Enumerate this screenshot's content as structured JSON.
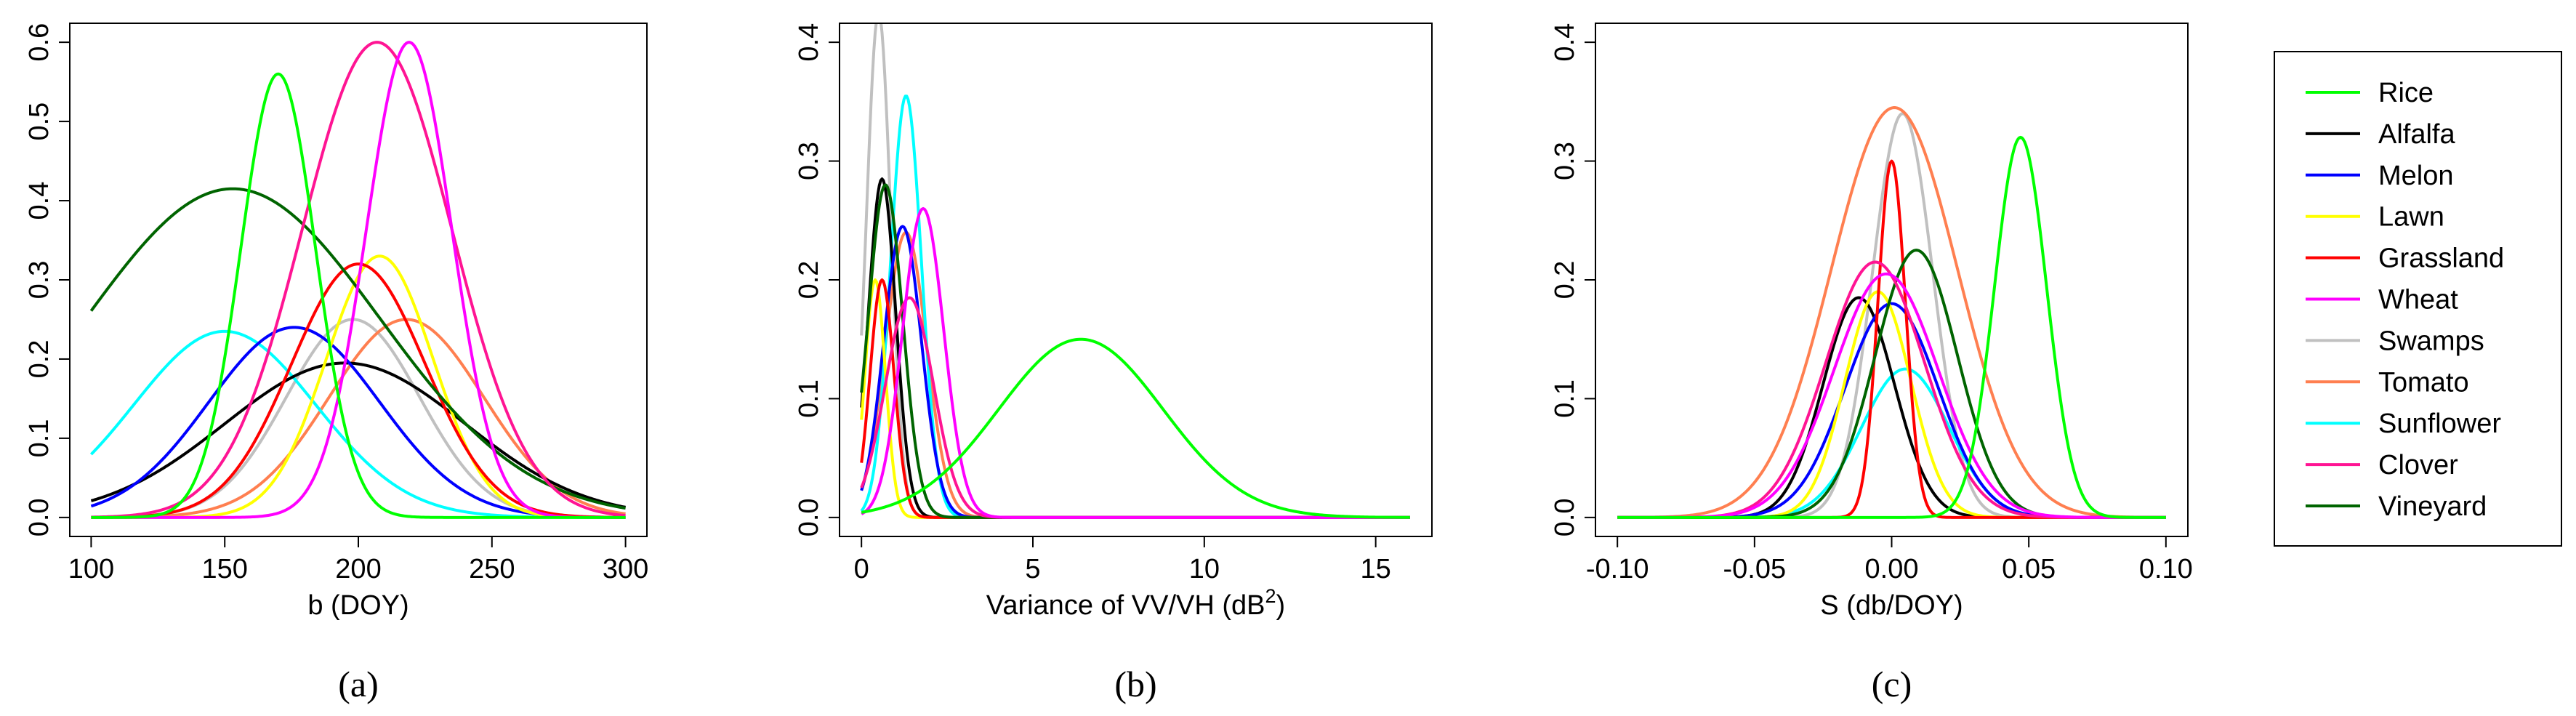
{
  "chart_data": [
    {
      "type": "line",
      "panel_label": "(a)",
      "title": "",
      "xlabel": "b (DOY)",
      "ylabel": "",
      "xlim": [
        100,
        300
      ],
      "ylim": [
        0,
        0.6
      ],
      "xticks": [
        "100",
        "150",
        "200",
        "250",
        "300"
      ],
      "yticks": [
        "0.0",
        "0.1",
        "0.2",
        "0.3",
        "0.4",
        "0.5",
        "0.6"
      ],
      "series": [
        {
          "name": "Rice",
          "color": "#00ff00",
          "shape": "gaussian",
          "mean": 170,
          "sd": 14,
          "peak": 0.56
        },
        {
          "name": "Alfalfa",
          "color": "#000000",
          "shape": "gaussian",
          "mean": 195,
          "sd": 45,
          "peak": 0.195
        },
        {
          "name": "Melon",
          "color": "#0000ff",
          "shape": "gaussian",
          "mean": 176,
          "sd": 32,
          "peak": 0.24
        },
        {
          "name": "Lawn",
          "color": "#ffff00",
          "shape": "gaussian",
          "mean": 208,
          "sd": 20,
          "peak": 0.33
        },
        {
          "name": "Grassland",
          "color": "#ff0000",
          "shape": "gaussian",
          "mean": 200,
          "sd": 25,
          "peak": 0.32
        },
        {
          "name": "Wheat",
          "color": "#ff00ff",
          "shape": "gaussian",
          "mean": 219,
          "sd": 16,
          "peak": 0.6
        },
        {
          "name": "Swamps",
          "color": "#c0c0c0",
          "shape": "gaussian",
          "mean": 198,
          "sd": 25,
          "peak": 0.25
        },
        {
          "name": "Tomato",
          "color": "#ff7f50",
          "shape": "gaussian",
          "mean": 218,
          "sd": 29,
          "peak": 0.25
        },
        {
          "name": "Sunflower",
          "color": "#00ffff",
          "shape": "gaussian",
          "mean": 150,
          "sd": 34,
          "peak": 0.235
        },
        {
          "name": "Clover",
          "color": "#ff1493",
          "shape": "gaussian",
          "mean": 207,
          "sd": 28,
          "peak": 0.6
        },
        {
          "name": "Vineyard",
          "color": "#006400",
          "shape": "gaussian",
          "mean": 153,
          "sd": 55,
          "peak": 0.415
        }
      ]
    },
    {
      "type": "line",
      "panel_label": "(b)",
      "title": "",
      "xlabel": "Variance of VV/VH (dB",
      "xlabel_sup": "2",
      "xlabel_end": ")",
      "ylabel": "",
      "xlim": [
        0,
        16
      ],
      "ylim": [
        0,
        0.4
      ],
      "xticks": [
        "0",
        "5",
        "10",
        "15"
      ],
      "yticks": [
        "0.0",
        "0.1",
        "0.2",
        "0.3",
        "0.4"
      ],
      "series": [
        {
          "name": "Rice",
          "color": "#00ff00",
          "shape": "gaussian",
          "mean": 6.4,
          "sd": 2.4,
          "peak": 0.15
        },
        {
          "name": "Alfalfa",
          "color": "#000000",
          "shape": "gaussian",
          "mean": 0.6,
          "sd": 0.4,
          "peak": 0.285
        },
        {
          "name": "Melon",
          "color": "#0000ff",
          "shape": "gaussian",
          "mean": 1.2,
          "sd": 0.55,
          "peak": 0.245
        },
        {
          "name": "Lawn",
          "color": "#ffff00",
          "shape": "gaussian",
          "mean": 0.4,
          "sd": 0.3,
          "peak": 0.2
        },
        {
          "name": "Grassland",
          "color": "#ff0000",
          "shape": "gaussian",
          "mean": 0.6,
          "sd": 0.35,
          "peak": 0.2
        },
        {
          "name": "Wheat",
          "color": "#ff00ff",
          "shape": "gaussian",
          "mean": 1.8,
          "sd": 0.6,
          "peak": 0.26
        },
        {
          "name": "Swamps",
          "color": "#c0c0c0",
          "shape": "gaussian",
          "mean": 0.5,
          "sd": 0.35,
          "peak": 0.425
        },
        {
          "name": "Tomato",
          "color": "#ff7f50",
          "shape": "gaussian",
          "mean": 1.3,
          "sd": 0.6,
          "peak": 0.24
        },
        {
          "name": "Sunflower",
          "color": "#00ffff",
          "shape": "gaussian",
          "mean": 1.3,
          "sd": 0.45,
          "peak": 0.355
        },
        {
          "name": "Clover",
          "color": "#ff1493",
          "shape": "gaussian",
          "mean": 1.4,
          "sd": 0.7,
          "peak": 0.185
        },
        {
          "name": "Vineyard",
          "color": "#006400",
          "shape": "gaussian",
          "mean": 0.7,
          "sd": 0.5,
          "peak": 0.28
        }
      ]
    },
    {
      "type": "line",
      "panel_label": "(c)",
      "title": "",
      "xlabel": "S (db/DOY)",
      "ylabel": "",
      "xlim": [
        -0.1,
        0.1
      ],
      "ylim": [
        0,
        0.4
      ],
      "xticks": [
        "-0.10",
        "-0.05",
        "0.00",
        "0.05",
        "0.10"
      ],
      "yticks": [
        "0.0",
        "0.1",
        "0.2",
        "0.3",
        "0.4"
      ],
      "series": [
        {
          "name": "Rice",
          "color": "#00ff00",
          "shape": "gaussian",
          "mean": 0.047,
          "sd": 0.0095,
          "peak": 0.32
        },
        {
          "name": "Alfalfa",
          "color": "#000000",
          "shape": "gaussian",
          "mean": -0.012,
          "sd": 0.013,
          "peak": 0.185
        },
        {
          "name": "Melon",
          "color": "#0000ff",
          "shape": "gaussian",
          "mean": 0.0,
          "sd": 0.017,
          "peak": 0.18
        },
        {
          "name": "Lawn",
          "color": "#ffff00",
          "shape": "gaussian",
          "mean": -0.005,
          "sd": 0.012,
          "peak": 0.19
        },
        {
          "name": "Grassland",
          "color": "#ff0000",
          "shape": "gaussian",
          "mean": 0.0,
          "sd": 0.005,
          "peak": 0.3
        },
        {
          "name": "Wheat",
          "color": "#ff00ff",
          "shape": "gaussian",
          "mean": -0.002,
          "sd": 0.019,
          "peak": 0.205
        },
        {
          "name": "Swamps",
          "color": "#c0c0c0",
          "shape": "gaussian",
          "mean": 0.004,
          "sd": 0.011,
          "peak": 0.34
        },
        {
          "name": "Tomato",
          "color": "#ff7f50",
          "shape": "gaussian",
          "mean": 0.001,
          "sd": 0.023,
          "peak": 0.345
        },
        {
          "name": "Sunflower",
          "color": "#00ffff",
          "shape": "gaussian",
          "mean": 0.005,
          "sd": 0.016,
          "peak": 0.125
        },
        {
          "name": "Clover",
          "color": "#ff1493",
          "shape": "gaussian",
          "mean": -0.006,
          "sd": 0.018,
          "peak": 0.215
        },
        {
          "name": "Vineyard",
          "color": "#006400",
          "shape": "gaussian",
          "mean": 0.009,
          "sd": 0.015,
          "peak": 0.225
        }
      ]
    }
  ],
  "legend": {
    "position": "right",
    "entries": [
      {
        "label": "Rice",
        "color": "#00ff00"
      },
      {
        "label": "Alfalfa",
        "color": "#000000"
      },
      {
        "label": "Melon",
        "color": "#0000ff"
      },
      {
        "label": "Lawn",
        "color": "#ffff00"
      },
      {
        "label": "Grassland",
        "color": "#ff0000"
      },
      {
        "label": "Wheat",
        "color": "#ff00ff"
      },
      {
        "label": "Swamps",
        "color": "#c0c0c0"
      },
      {
        "label": "Tomato",
        "color": "#ff7f50"
      },
      {
        "label": "Sunflower",
        "color": "#00ffff"
      },
      {
        "label": "Clover",
        "color": "#ff1493"
      },
      {
        "label": "Vineyard",
        "color": "#006400"
      }
    ]
  }
}
